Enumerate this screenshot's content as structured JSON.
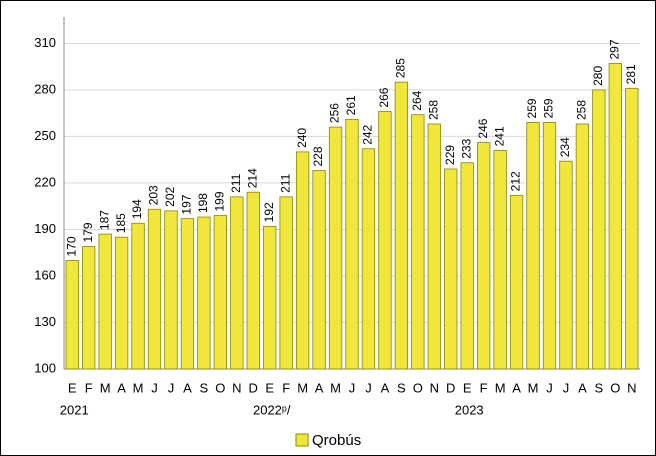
{
  "chart_data": {
    "type": "bar",
    "categories": [
      "E",
      "F",
      "M",
      "A",
      "M",
      "J",
      "J",
      "A",
      "S",
      "O",
      "N",
      "D",
      "E",
      "F",
      "M",
      "A",
      "M",
      "J",
      "J",
      "A",
      "S",
      "O",
      "N",
      "D",
      "E",
      "F",
      "M",
      "A",
      "M",
      "J",
      "J",
      "A",
      "S",
      "O",
      "N"
    ],
    "year_labels": [
      "2021",
      null,
      null,
      null,
      null,
      null,
      null,
      null,
      null,
      null,
      null,
      null,
      "2022ᵖ/",
      null,
      null,
      null,
      null,
      null,
      null,
      null,
      null,
      null,
      null,
      null,
      "2023",
      null,
      null,
      null,
      null,
      null,
      null,
      null,
      null,
      null,
      null
    ],
    "series": [
      {
        "name": "Qrobús",
        "color": "#f0e63c",
        "values": [
          170,
          179,
          187,
          185,
          194,
          203,
          202,
          197,
          198,
          199,
          211,
          214,
          192,
          211,
          240,
          228,
          256,
          261,
          242,
          266,
          285,
          264,
          258,
          229,
          233,
          246,
          241,
          212,
          259,
          259,
          234,
          258,
          280,
          297,
          281
        ]
      }
    ],
    "ylim": [
      100,
      327
    ],
    "yticks": [
      100,
      130,
      160,
      190,
      220,
      250,
      280,
      310
    ],
    "grid": true,
    "legend": "bottom"
  }
}
